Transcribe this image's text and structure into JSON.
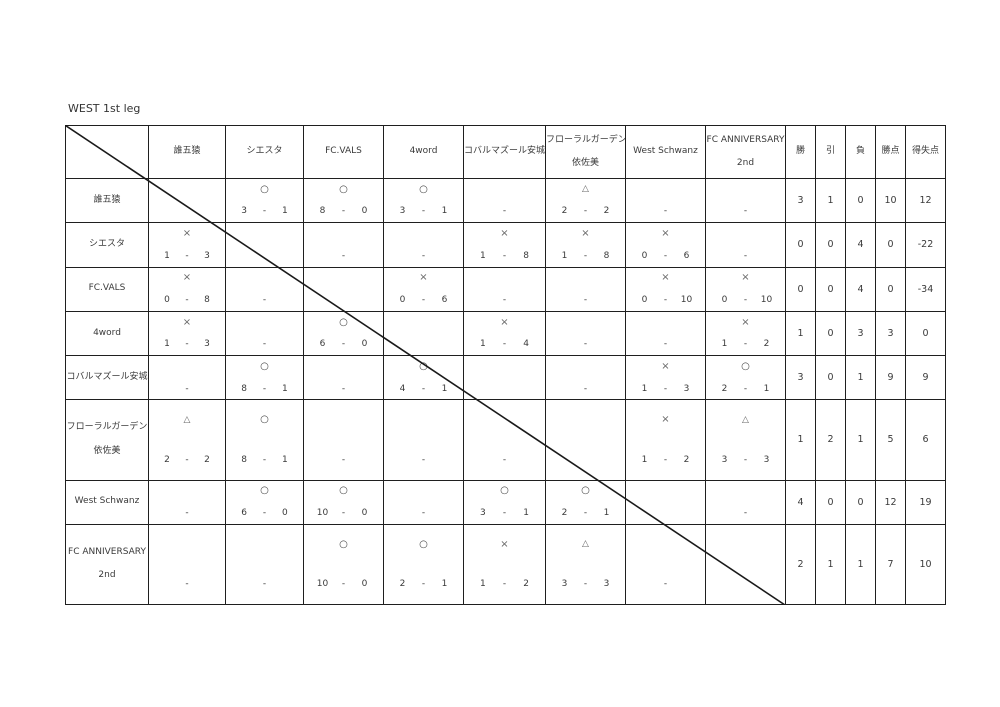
{
  "title": "WEST 1st leg",
  "legend": {
    "win_symbol": "○",
    "loss_symbol": "×",
    "draw_symbol": "△",
    "unplayed": "-"
  },
  "columns": [
    "誰五猿",
    "シエスタ",
    "FC.VALS",
    "4word",
    "コバルマズール安城",
    "フローラルガーデン\n依佐美",
    "West Schwanz",
    "FC ANNIVERSARY\n2nd"
  ],
  "stat_columns": [
    "勝",
    "引",
    "負",
    "勝点",
    "得失点"
  ],
  "rows": [
    {
      "team": "誰五猿",
      "results": [
        "",
        "○ 3-1",
        "○ 8-0",
        "○ 3-1",
        "-",
        "△ 2-2",
        "-",
        "-"
      ],
      "stats": [
        "3",
        "1",
        "0",
        "10",
        "12"
      ]
    },
    {
      "team": "シエスタ",
      "results": [
        "× 1-3",
        "",
        "-",
        "-",
        "× 1-8",
        "× 1-8",
        "× 0-6",
        "-"
      ],
      "stats": [
        "0",
        "0",
        "4",
        "0",
        "-22"
      ]
    },
    {
      "team": "FC.VALS",
      "results": [
        "× 0-8",
        "-",
        "",
        "× 0-6",
        "-",
        "-",
        "× 0-10",
        "× 0-10"
      ],
      "stats": [
        "0",
        "0",
        "4",
        "0",
        "-34"
      ]
    },
    {
      "team": "4word",
      "results": [
        "× 1-3",
        "-",
        "○ 6-0",
        "",
        "× 1-4",
        "-",
        "-",
        "× 1-2"
      ],
      "stats": [
        "1",
        "0",
        "3",
        "3",
        "0"
      ]
    },
    {
      "team": "コバルマズール安城",
      "results": [
        "-",
        "○ 8-1",
        "-",
        "○ 4-1",
        "",
        "-",
        "× 1-3",
        "○ 2-1"
      ],
      "stats": [
        "3",
        "0",
        "1",
        "9",
        "9"
      ]
    },
    {
      "team": "フローラルガーデン\n依佐美",
      "results": [
        "△ 2-2",
        "○ 8-1",
        "-",
        "-",
        "-",
        "",
        "× 1-2",
        "△ 3-3"
      ],
      "stats": [
        "1",
        "2",
        "1",
        "5",
        "6"
      ]
    },
    {
      "team": "West Schwanz",
      "results": [
        "-",
        "○ 6-0",
        "○ 10-0",
        "-",
        "○ 3-1",
        "○ 2-1",
        "",
        "-"
      ],
      "stats": [
        "4",
        "0",
        "0",
        "12",
        "19"
      ]
    },
    {
      "team": "FC ANNIVERSARY\n2nd",
      "results": [
        "-",
        "-",
        "○ 10-0",
        "○ 2-1",
        "× 1-2",
        "△ 3-3",
        "-",
        ""
      ],
      "stats": [
        "2",
        "1",
        "1",
        "7",
        "10"
      ]
    }
  ]
}
